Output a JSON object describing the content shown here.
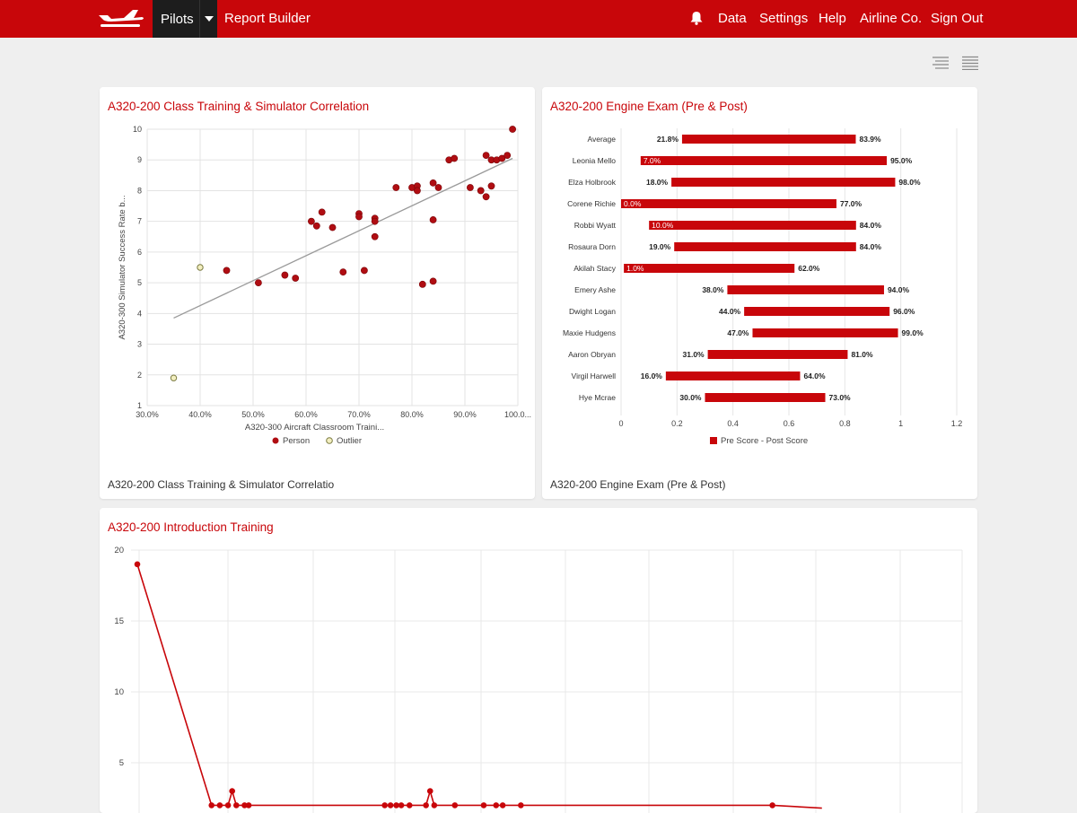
{
  "nav": {
    "dropdown_label": "Pilots",
    "links": [
      "Report Builder",
      "Data",
      "Settings",
      "Help",
      "Airline Co.",
      "Sign Out"
    ],
    "icons": {
      "logo": "airplane-logo-icon",
      "notifications": "bell-icon",
      "dropdown": "caret-down-icon"
    }
  },
  "toolbar": {
    "icons": [
      "filter-list-icon",
      "list-view-icon"
    ]
  },
  "colors": {
    "brand": "#c8060a",
    "dark": "#1d1d1d",
    "outlier": "#f3efc0",
    "trend": "#9a9a9a"
  },
  "cards": {
    "scatter": {
      "title": "A320-200 Class Training & Simulator Correlation",
      "footer": "A320-200 Class Training & Simulator Correlatio"
    },
    "engine": {
      "title": "A320-200 Engine Exam (Pre & Post)",
      "footer": "A320-200 Engine Exam (Pre & Post)"
    },
    "intro": {
      "title": "A320-200 Introduction Training"
    }
  },
  "chart_data": [
    {
      "type": "scatter",
      "xlabel": "A320-300 Aircraft Classroom Traini...",
      "ylabel": "A320-300 Simulator Success Rate b...",
      "xlim": [
        0.3,
        1.0
      ],
      "ylim": [
        1,
        10
      ],
      "x_ticks": [
        "30.0%",
        "40.0%",
        "50.0%",
        "60.0%",
        "70.0%",
        "80.0%",
        "90.0%",
        "100.0..."
      ],
      "y_ticks": [
        "1",
        "2",
        "3",
        "4",
        "5",
        "6",
        "7",
        "8",
        "9",
        "10"
      ],
      "grid": true,
      "legend": "bottom",
      "series": [
        {
          "name": "Person",
          "points": [
            [
              0.45,
              5.4
            ],
            [
              0.51,
              5.0
            ],
            [
              0.56,
              5.25
            ],
            [
              0.58,
              5.15
            ],
            [
              0.61,
              7.0
            ],
            [
              0.62,
              6.85
            ],
            [
              0.63,
              7.3
            ],
            [
              0.65,
              6.8
            ],
            [
              0.67,
              5.35
            ],
            [
              0.7,
              7.25
            ],
            [
              0.7,
              7.15
            ],
            [
              0.71,
              5.4
            ],
            [
              0.73,
              7.1
            ],
            [
              0.73,
              7.0
            ],
            [
              0.73,
              6.5
            ],
            [
              0.77,
              8.1
            ],
            [
              0.8,
              8.1
            ],
            [
              0.81,
              8.15
            ],
            [
              0.81,
              8.0
            ],
            [
              0.82,
              4.95
            ],
            [
              0.84,
              8.25
            ],
            [
              0.84,
              7.05
            ],
            [
              0.84,
              5.05
            ],
            [
              0.85,
              8.1
            ],
            [
              0.87,
              9.0
            ],
            [
              0.88,
              9.05
            ],
            [
              0.91,
              8.1
            ],
            [
              0.93,
              8.0
            ],
            [
              0.94,
              9.15
            ],
            [
              0.94,
              7.8
            ],
            [
              0.95,
              9.0
            ],
            [
              0.95,
              8.15
            ],
            [
              0.96,
              9.0
            ],
            [
              0.97,
              9.05
            ],
            [
              0.98,
              9.15
            ],
            [
              0.99,
              10.0
            ]
          ]
        },
        {
          "name": "Outlier",
          "points": [
            [
              0.4,
              5.5
            ],
            [
              0.35,
              1.9
            ]
          ]
        }
      ],
      "trendline": [
        [
          0.35,
          3.85
        ],
        [
          0.99,
          9.05
        ]
      ]
    },
    {
      "type": "bar",
      "orientation": "horizontal",
      "categories": [
        "Average",
        "Leonia Mello",
        "Elza Holbrook",
        "Corene Richie",
        "Robbi Wyatt",
        "Rosaura Dorn",
        "Akilah Stacy",
        "Emery Ashe",
        "Dwight Logan",
        "Maxie Hudgens",
        "Aaron Obryan",
        "Virgil Harwell",
        "Hye Mcrae"
      ],
      "series": [
        {
          "name": "Pre Score",
          "values": [
            0.218,
            0.07,
            0.18,
            0.0,
            0.1,
            0.19,
            0.01,
            0.38,
            0.44,
            0.47,
            0.31,
            0.16,
            0.3
          ]
        },
        {
          "name": "Post Score",
          "values": [
            0.839,
            0.95,
            0.98,
            0.77,
            0.84,
            0.84,
            0.62,
            0.94,
            0.96,
            0.99,
            0.81,
            0.64,
            0.73
          ]
        }
      ],
      "pre_labels": [
        "21.8%",
        "7.0%",
        "18.0%",
        "0.0%",
        "10.0%",
        "19.0%",
        "1.0%",
        "38.0%",
        "44.0%",
        "47.0%",
        "31.0%",
        "16.0%",
        "30.0%"
      ],
      "post_labels": [
        "83.9%",
        "95.0%",
        "98.0%",
        "77.0%",
        "84.0%",
        "84.0%",
        "62.0%",
        "94.0%",
        "96.0%",
        "99.0%",
        "81.0%",
        "64.0%",
        "73.0%"
      ],
      "xlim": [
        0,
        1.2
      ],
      "x_ticks": [
        "0",
        "0.2",
        "0.4",
        "0.6",
        "0.8",
        "1",
        "1.2"
      ],
      "legend": "Pre Score - Post Score",
      "legend_position": "bottom"
    },
    {
      "type": "line",
      "ylim": [
        2,
        20
      ],
      "y_ticks": [
        "20",
        "15",
        "10",
        "5"
      ],
      "x_index_range": [
        0,
        100
      ],
      "values_by_index": [
        [
          0,
          19
        ],
        [
          9,
          2
        ],
        [
          10,
          2
        ],
        [
          11,
          2
        ],
        [
          11.5,
          3
        ],
        [
          12,
          2
        ],
        [
          13,
          2
        ],
        [
          13.5,
          2
        ],
        [
          30,
          2
        ],
        [
          30.7,
          2
        ],
        [
          31.4,
          2
        ],
        [
          32,
          2
        ],
        [
          33,
          2
        ],
        [
          35,
          2
        ],
        [
          35.5,
          3
        ],
        [
          36,
          2
        ],
        [
          38.5,
          2
        ],
        [
          42,
          2
        ],
        [
          43.5,
          2
        ],
        [
          44.3,
          2
        ],
        [
          46.5,
          2
        ],
        [
          77,
          2
        ],
        [
          83,
          1.8
        ]
      ]
    }
  ]
}
